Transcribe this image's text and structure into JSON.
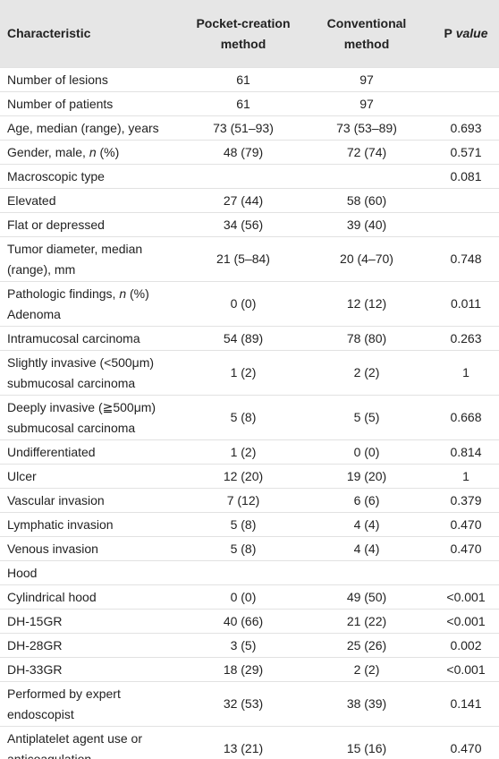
{
  "table": {
    "header": [
      "Characteristic",
      "Pocket-creation\nmethod",
      "Conventional\nmethod",
      [
        "P",
        " value"
      ]
    ],
    "rows": [
      [
        "Number of lesions",
        "61",
        "97",
        ""
      ],
      [
        "Number of patients",
        "61",
        "97",
        ""
      ],
      [
        "Age, median (range), years",
        "73 (51–93)",
        "73 (53–89)",
        "0.693"
      ],
      [
        [
          "Gender, male, ",
          "n",
          " (%)"
        ],
        "48 (79)",
        "72 (74)",
        "0.571"
      ],
      [
        "Macroscopic type",
        "",
        "",
        "0.081"
      ],
      [
        "Elevated",
        "27 (44)",
        "58 (60)",
        ""
      ],
      [
        "Flat or depressed",
        "34 (56)",
        "39 (40)",
        ""
      ],
      [
        "Tumor diameter, median\n(range), mm",
        "21 (5–84)",
        "20 (4–70)",
        "0.748"
      ],
      [
        [
          "Pathologic findings, ",
          "n",
          " (%)\nAdenoma"
        ],
        "0 (0)",
        "12 (12)",
        "0.011"
      ],
      [
        "Intramucosal carcinoma",
        "54 (89)",
        "78 (80)",
        "0.263"
      ],
      [
        "Slightly invasive (<500μm)\nsubmucosal carcinoma",
        "1 (2)",
        "2 (2)",
        "1"
      ],
      [
        "Deeply invasive (≧500μm)\nsubmucosal carcinoma",
        "5 (8)",
        "5 (5)",
        "0.668"
      ],
      [
        "Undifferentiated",
        "1 (2)",
        "0 (0)",
        "0.814"
      ],
      [
        "Ulcer",
        "12 (20)",
        "19 (20)",
        "1"
      ],
      [
        "Vascular invasion",
        "7 (12)",
        "6 (6)",
        "0.379"
      ],
      [
        "Lymphatic invasion",
        "5 (8)",
        "4 (4)",
        "0.470"
      ],
      [
        "Venous invasion",
        "5 (8)",
        "4 (4)",
        "0.470"
      ],
      [
        "Hood",
        "",
        "",
        ""
      ],
      [
        "Cylindrical hood",
        "0 (0)",
        "49 (50)",
        "<0.001"
      ],
      [
        "DH-15GR",
        "40 (66)",
        "21 (22)",
        "<0.001"
      ],
      [
        "DH-28GR",
        "3 (5)",
        "25 (26)",
        "0.002"
      ],
      [
        "DH-33GR",
        "18 (29)",
        "2 (2)",
        "<0.001"
      ],
      [
        "Performed by expert\nendoscopist",
        "32 (53)",
        "38 (39)",
        "0.141"
      ],
      [
        "Antiplatelet agent use or\nanticoagulation",
        "13 (21)",
        "15 (16)",
        "0.470"
      ]
    ]
  }
}
